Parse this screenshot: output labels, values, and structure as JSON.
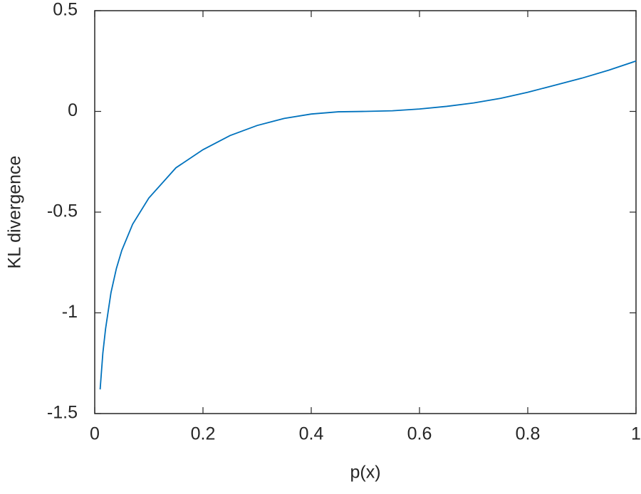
{
  "chart_data": {
    "type": "line",
    "xlabel": "p(x)",
    "ylabel": "KL divergence",
    "x": [
      0.01,
      0.015,
      0.02,
      0.03,
      0.04,
      0.05,
      0.07,
      0.1,
      0.15,
      0.2,
      0.25,
      0.3,
      0.35,
      0.4,
      0.45,
      0.5,
      0.55,
      0.6,
      0.65,
      0.7,
      0.75,
      0.8,
      0.85,
      0.9,
      0.95,
      1
    ],
    "series": [
      {
        "color": "#0072bd",
        "values": [
          -1.38,
          -1.2,
          -1.08,
          -0.9,
          -0.78,
          -0.69,
          -0.56,
          -0.43,
          -0.28,
          -0.19,
          -0.12,
          -0.07,
          -0.035,
          -0.013,
          -0.002,
          0,
          0.003,
          0.012,
          0.025,
          0.042,
          0.065,
          0.095,
          0.13,
          0.165,
          0.205,
          0.25
        ]
      }
    ],
    "xlim": [
      0,
      1
    ],
    "xticks": [
      0,
      0.2,
      0.4,
      0.6,
      0.8,
      1
    ],
    "ylim": [
      -1.5,
      0.5
    ],
    "yticks": [
      -1.5,
      -1,
      -0.5,
      0,
      0.5
    ],
    "grid": false
  }
}
